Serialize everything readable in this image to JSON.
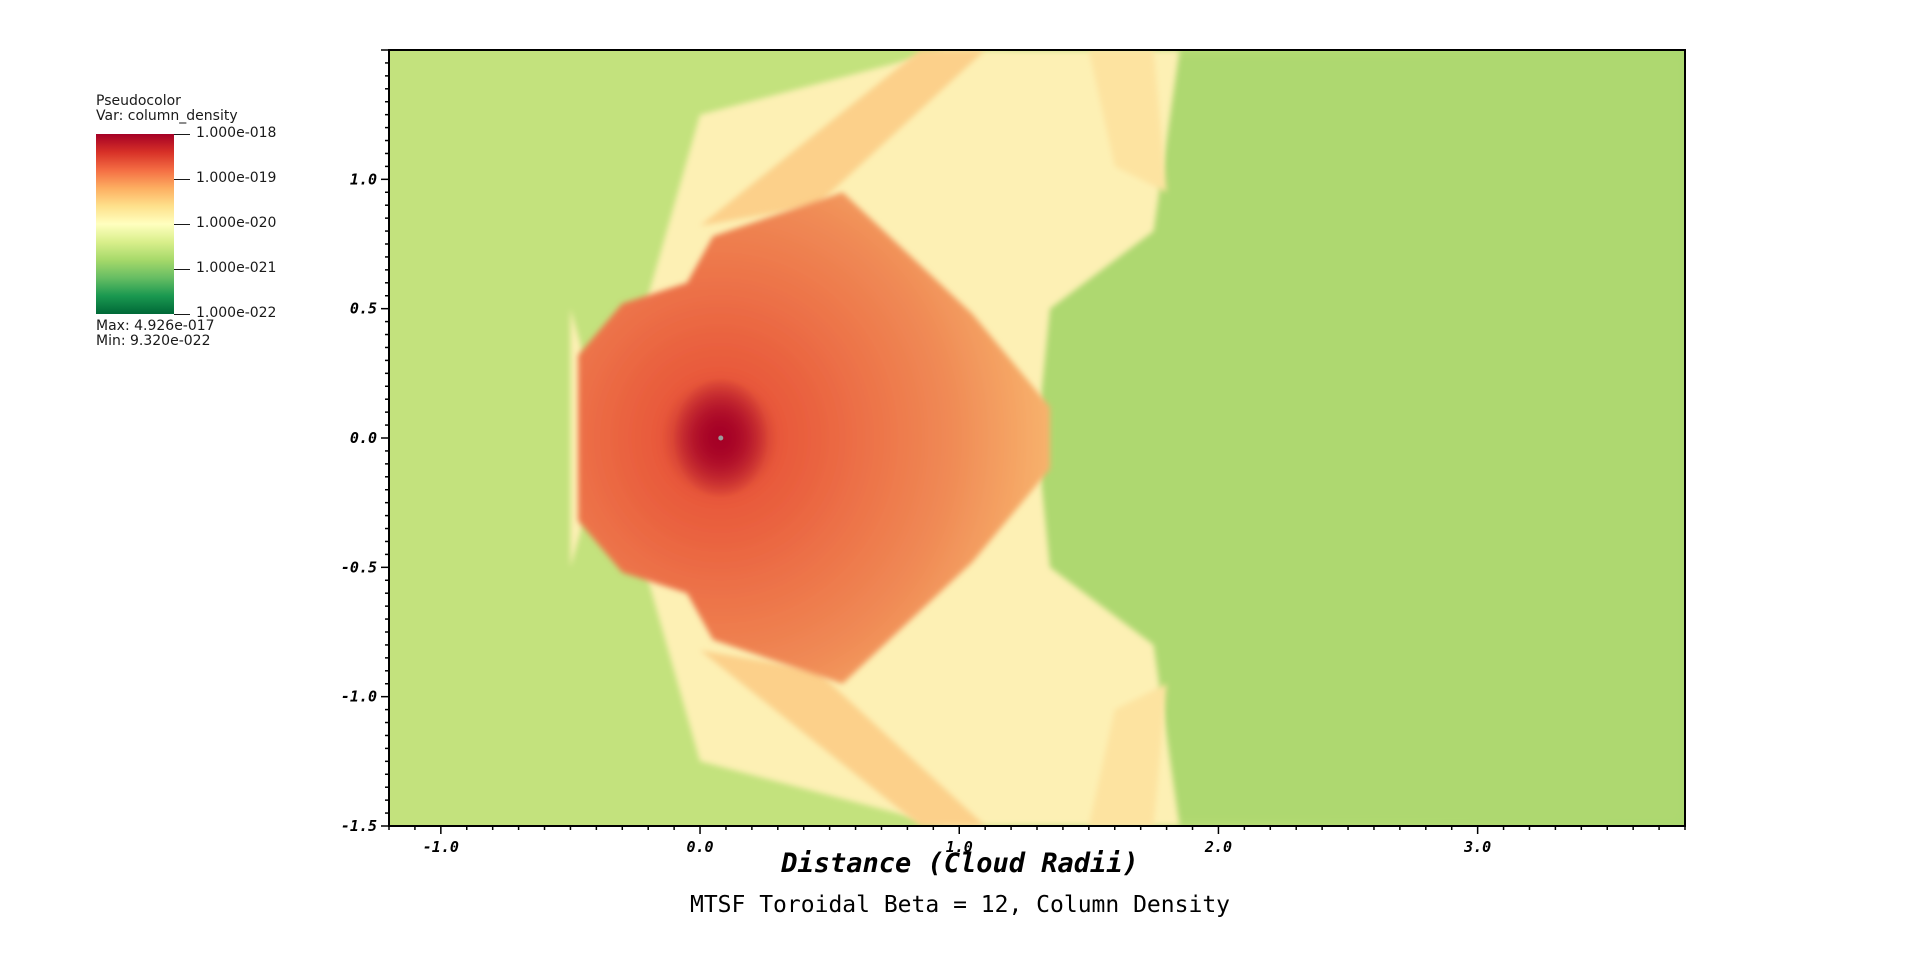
{
  "legend": {
    "plot_type": "Pseudocolor",
    "var_line": "Var: column_density",
    "tick_labels": [
      "1.000e-018",
      "1.000e-019",
      "1.000e-020",
      "1.000e-021",
      "1.000e-022"
    ],
    "max_line": "Max:  4.926e-017",
    "min_line": "Min:  9.320e-022",
    "colors": [
      "#a50026",
      "#d73027",
      "#f46d43",
      "#fdae61",
      "#fee08b",
      "#ffffbf",
      "#d9ef8b",
      "#a6d96a",
      "#66bd63",
      "#1a9850",
      "#006837"
    ]
  },
  "chart_data": {
    "type": "heatmap",
    "title": "MTSF Toroidal Beta = 12, Column Density",
    "xlabel": "Distance (Cloud Radii)",
    "ylabel": "",
    "xlim": [
      -1.2,
      3.8
    ],
    "ylim": [
      -1.5,
      1.5
    ],
    "x_ticks": [
      -1.0,
      0.0,
      1.0,
      2.0,
      3.0
    ],
    "x_tick_labels": [
      "-1.0",
      "0.0",
      "1.0",
      "2.0",
      "3.0"
    ],
    "y_ticks": [
      1.0,
      0.5,
      0.0,
      -0.5,
      -1.0,
      -1.5
    ],
    "y_tick_labels": [
      "1.0",
      "0.5",
      "0.0",
      "-0.5",
      "-1.0",
      "-1.5"
    ],
    "colorbar_range": [
      1e-22,
      1e-18
    ],
    "colorbar_scale": "log",
    "data_max": 4.926e-17,
    "data_min": 9.32e-22,
    "colors": {
      "background_field": "#c3e27d",
      "outer_region": "#a8d86e",
      "bow_shell": "#fdf0b4",
      "core_outer": "#f7b26c",
      "core_inner": "#e8583a",
      "core_peak": "#a50026",
      "marker": "#9a9a9a"
    }
  }
}
